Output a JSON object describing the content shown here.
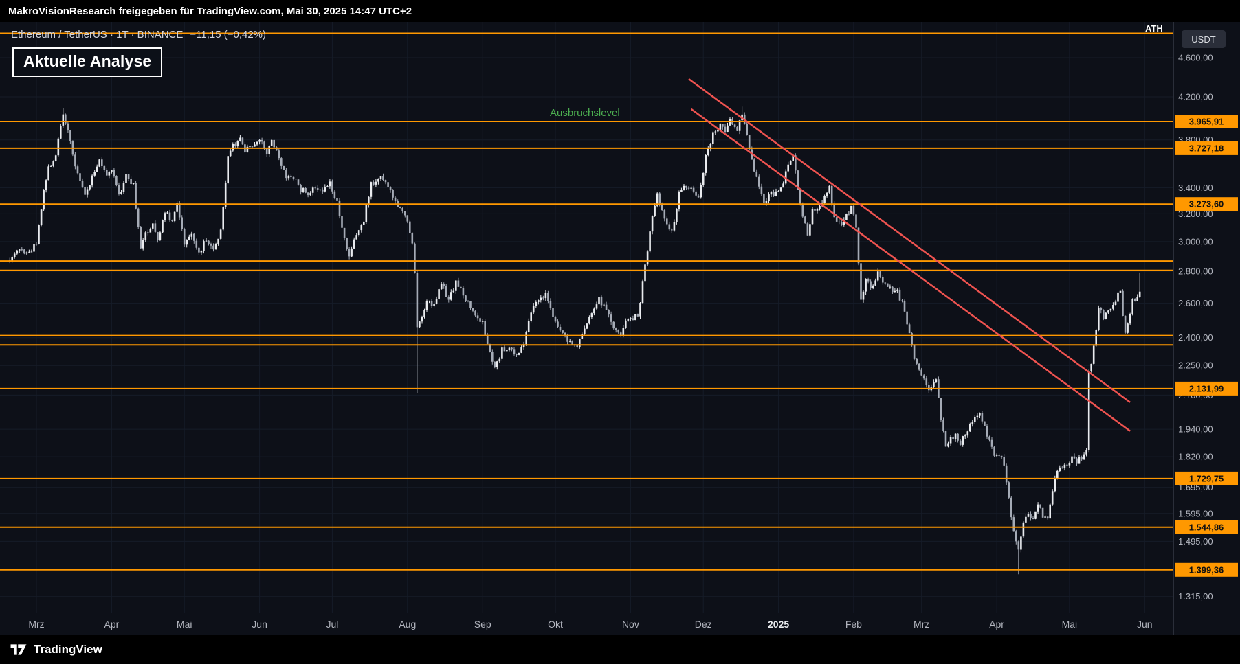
{
  "top_bar": {
    "text": "MakroVisionResearch freigegeben für TradingView.com, Mai 30, 2025 14:47 UTC+2"
  },
  "legend": {
    "symbol_text": "Ethereum / TetherUS · 1T · BINANCE",
    "change": "−11,15 (−0,42%)"
  },
  "analysis_box": {
    "label": "Aktuelle Analyse"
  },
  "annotations": {
    "breakout_label": "Ausbruchslevel",
    "breakout_color": "#4caf50",
    "ath_label": "ATH"
  },
  "currency_button": {
    "label": "USDT"
  },
  "footer": {
    "brand": "TradingView"
  },
  "axis": {
    "price_ticks": [
      {
        "label": "4.600,00",
        "value": 4600
      },
      {
        "label": "4.200,00",
        "value": 4200
      },
      {
        "label": "3.800,00",
        "value": 3800
      },
      {
        "label": "3.400,00",
        "value": 3400
      },
      {
        "label": "3.200,00",
        "value": 3200
      },
      {
        "label": "3.000,00",
        "value": 3000
      },
      {
        "label": "2.800,00",
        "value": 2800
      },
      {
        "label": "2.600,00",
        "value": 2600
      },
      {
        "label": "2.400,00",
        "value": 2400
      },
      {
        "label": "2.250,00",
        "value": 2250
      },
      {
        "label": "2.100,00",
        "value": 2100
      },
      {
        "label": "1.940,00",
        "value": 1940
      },
      {
        "label": "1.820,00",
        "value": 1820
      },
      {
        "label": "1.695,00",
        "value": 1695
      },
      {
        "label": "1.595,00",
        "value": 1595
      },
      {
        "label": "1.495,00",
        "value": 1495
      },
      {
        "label": "1.315,00",
        "value": 1315
      }
    ],
    "level_badges": [
      {
        "label": "3.965,91",
        "value": 3965.91
      },
      {
        "label": "3.727,18",
        "value": 3727.18
      },
      {
        "label": "3.273,60",
        "value": 3273.6
      },
      {
        "label": "2.131,99",
        "value": 2131.99
      },
      {
        "label": "1.729,75",
        "value": 1729.75
      },
      {
        "label": "1.544,86",
        "value": 1544.86
      },
      {
        "label": "1.399,36",
        "value": 1399.36
      }
    ],
    "time_ticks": [
      {
        "label": "Mrz",
        "day": 0
      },
      {
        "label": "Apr",
        "day": 31
      },
      {
        "label": "Mai",
        "day": 61
      },
      {
        "label": "Jun",
        "day": 92
      },
      {
        "label": "Jul",
        "day": 122
      },
      {
        "label": "Aug",
        "day": 153
      },
      {
        "label": "Sep",
        "day": 184
      },
      {
        "label": "Okt",
        "day": 214
      },
      {
        "label": "Nov",
        "day": 245
      },
      {
        "label": "Dez",
        "day": 275
      },
      {
        "label": "2025",
        "day": 306,
        "emphasis": true
      },
      {
        "label": "Feb",
        "day": 337
      },
      {
        "label": "Mrz",
        "day": 365
      },
      {
        "label": "Apr",
        "day": 396
      },
      {
        "label": "Mai",
        "day": 426
      },
      {
        "label": "Jun",
        "day": 457
      }
    ]
  },
  "chart_data": {
    "type": "candlestick",
    "title": "Ethereum / TetherUS · 1T · BINANCE",
    "interval": "1D",
    "quote_currency": "USDT",
    "price_scale": "log",
    "price_range_visible": [
      1250,
      4900
    ],
    "x_domain_days": [
      -11,
      457
    ],
    "x_domain_dates": [
      "2024-02-19",
      "2025-06-01"
    ],
    "last_price": 2655,
    "last_change": -11.15,
    "last_change_pct": -0.42,
    "anchors": [
      [
        -11,
        2880
      ],
      [
        -7,
        2950
      ],
      [
        -3,
        2920
      ],
      [
        0,
        3000
      ],
      [
        3,
        3380
      ],
      [
        5,
        3550
      ],
      [
        8,
        3680
      ],
      [
        11,
        4050
      ],
      [
        13,
        3880
      ],
      [
        16,
        3560
      ],
      [
        18,
        3460
      ],
      [
        20,
        3340
      ],
      [
        23,
        3490
      ],
      [
        26,
        3620
      ],
      [
        29,
        3500
      ],
      [
        31,
        3560
      ],
      [
        34,
        3330
      ],
      [
        37,
        3510
      ],
      [
        40,
        3420
      ],
      [
        43,
        2940
      ],
      [
        45,
        3060
      ],
      [
        48,
        3130
      ],
      [
        50,
        3010
      ],
      [
        53,
        3220
      ],
      [
        56,
        3130
      ],
      [
        58,
        3280
      ],
      [
        61,
        2990
      ],
      [
        64,
        3050
      ],
      [
        67,
        2930
      ],
      [
        70,
        3010
      ],
      [
        73,
        2950
      ],
      [
        76,
        3080
      ],
      [
        79,
        3660
      ],
      [
        81,
        3740
      ],
      [
        84,
        3820
      ],
      [
        86,
        3690
      ],
      [
        89,
        3760
      ],
      [
        92,
        3800
      ],
      [
        95,
        3690
      ],
      [
        97,
        3810
      ],
      [
        100,
        3620
      ],
      [
        103,
        3500
      ],
      [
        106,
        3480
      ],
      [
        109,
        3390
      ],
      [
        112,
        3350
      ],
      [
        115,
        3420
      ],
      [
        118,
        3380
      ],
      [
        121,
        3440
      ],
      [
        124,
        3290
      ],
      [
        127,
        3010
      ],
      [
        129,
        2880
      ],
      [
        132,
        3060
      ],
      [
        135,
        3160
      ],
      [
        138,
        3440
      ],
      [
        141,
        3460
      ],
      [
        143,
        3480
      ],
      [
        146,
        3380
      ],
      [
        149,
        3240
      ],
      [
        152,
        3200
      ],
      [
        155,
        2980
      ],
      [
        156,
        2780
      ],
      [
        157,
        2450
      ],
      [
        159,
        2520
      ],
      [
        161,
        2610
      ],
      [
        164,
        2580
      ],
      [
        167,
        2720
      ],
      [
        170,
        2620
      ],
      [
        173,
        2730
      ],
      [
        176,
        2650
      ],
      [
        179,
        2580
      ],
      [
        182,
        2520
      ],
      [
        184,
        2480
      ],
      [
        187,
        2310
      ],
      [
        189,
        2230
      ],
      [
        192,
        2330
      ],
      [
        195,
        2350
      ],
      [
        198,
        2300
      ],
      [
        201,
        2380
      ],
      [
        204,
        2560
      ],
      [
        207,
        2610
      ],
      [
        210,
        2650
      ],
      [
        212,
        2580
      ],
      [
        214,
        2480
      ],
      [
        217,
        2420
      ],
      [
        220,
        2380
      ],
      [
        223,
        2350
      ],
      [
        226,
        2450
      ],
      [
        229,
        2530
      ],
      [
        232,
        2620
      ],
      [
        235,
        2560
      ],
      [
        238,
        2440
      ],
      [
        241,
        2420
      ],
      [
        244,
        2510
      ],
      [
        248,
        2520
      ],
      [
        250,
        2720
      ],
      [
        252,
        2950
      ],
      [
        254,
        3180
      ],
      [
        256,
        3360
      ],
      [
        258,
        3220
      ],
      [
        260,
        3120
      ],
      [
        262,
        3060
      ],
      [
        265,
        3350
      ],
      [
        268,
        3420
      ],
      [
        270,
        3400
      ],
      [
        273,
        3320
      ],
      [
        276,
        3650
      ],
      [
        279,
        3850
      ],
      [
        282,
        3920
      ],
      [
        284,
        3880
      ],
      [
        286,
        3990
      ],
      [
        289,
        3900
      ],
      [
        291,
        4010
      ],
      [
        293,
        3850
      ],
      [
        295,
        3620
      ],
      [
        298,
        3420
      ],
      [
        300,
        3280
      ],
      [
        302,
        3360
      ],
      [
        305,
        3350
      ],
      [
        308,
        3440
      ],
      [
        310,
        3610
      ],
      [
        312,
        3680
      ],
      [
        315,
        3280
      ],
      [
        318,
        3050
      ],
      [
        320,
        3220
      ],
      [
        322,
        3240
      ],
      [
        325,
        3320
      ],
      [
        327,
        3420
      ],
      [
        329,
        3180
      ],
      [
        331,
        3120
      ],
      [
        334,
        3180
      ],
      [
        336,
        3250
      ],
      [
        338,
        3120
      ],
      [
        339,
        2870
      ],
      [
        340,
        2630
      ],
      [
        342,
        2740
      ],
      [
        344,
        2700
      ],
      [
        347,
        2780
      ],
      [
        350,
        2720
      ],
      [
        353,
        2680
      ],
      [
        355,
        2670
      ],
      [
        358,
        2560
      ],
      [
        360,
        2420
      ],
      [
        362,
        2280
      ],
      [
        364,
        2230
      ],
      [
        366,
        2170
      ],
      [
        368,
        2120
      ],
      [
        371,
        2170
      ],
      [
        373,
        1990
      ],
      [
        375,
        1870
      ],
      [
        377,
        1900
      ],
      [
        379,
        1910
      ],
      [
        381,
        1880
      ],
      [
        384,
        1930
      ],
      [
        386,
        1970
      ],
      [
        389,
        2010
      ],
      [
        391,
        1950
      ],
      [
        393,
        1880
      ],
      [
        395,
        1820
      ],
      [
        397,
        1830
      ],
      [
        399,
        1790
      ],
      [
        402,
        1580
      ],
      [
        404,
        1500
      ],
      [
        405,
        1475
      ],
      [
        407,
        1560
      ],
      [
        409,
        1600
      ],
      [
        411,
        1570
      ],
      [
        413,
        1630
      ],
      [
        415,
        1590
      ],
      [
        417,
        1580
      ],
      [
        419,
        1690
      ],
      [
        421,
        1760
      ],
      [
        423,
        1780
      ],
      [
        425,
        1790
      ],
      [
        427,
        1810
      ],
      [
        429,
        1800
      ],
      [
        431,
        1820
      ],
      [
        433,
        1840
      ],
      [
        434,
        2210
      ],
      [
        436,
        2340
      ],
      [
        438,
        2560
      ],
      [
        440,
        2520
      ],
      [
        442,
        2560
      ],
      [
        444,
        2600
      ],
      [
        446,
        2650
      ],
      [
        447,
        2660
      ],
      [
        449,
        2430
      ],
      [
        451,
        2550
      ],
      [
        452,
        2620
      ],
      [
        454,
        2640
      ],
      [
        455,
        2655
      ]
    ],
    "events": [
      {
        "day": 11,
        "high": 4093
      },
      {
        "day": 157,
        "low": 2111
      },
      {
        "day": 291,
        "high": 4106
      },
      {
        "day": 340,
        "low": 2125
      },
      {
        "day": 405,
        "low": 1385
      },
      {
        "day": 455,
        "high": 2792
      }
    ],
    "levels": [
      {
        "price": 4868.0,
        "labeled": false,
        "note": "ATH"
      },
      {
        "price": 3965.91,
        "labeled": true
      },
      {
        "price": 3727.18,
        "labeled": true
      },
      {
        "price": 3273.6,
        "labeled": true
      },
      {
        "price": 2868,
        "labeled": false
      },
      {
        "price": 2806,
        "labeled": false
      },
      {
        "price": 2412,
        "labeled": false
      },
      {
        "price": 2360,
        "labeled": false
      },
      {
        "price": 2131.99,
        "labeled": true
      },
      {
        "price": 1729.75,
        "labeled": true
      },
      {
        "price": 1544.86,
        "labeled": true
      },
      {
        "price": 1399.36,
        "labeled": true
      }
    ],
    "trendlines": [
      {
        "d1": 269,
        "p1": 4378,
        "d2": 451,
        "p2": 2065
      },
      {
        "d1": 270,
        "p1": 4082,
        "d2": 451,
        "p2": 1932
      }
    ],
    "colors": {
      "background": "#0d1018",
      "grid": "#161c28",
      "candle_up": "#e9ebef",
      "candle_down": "#a5abb6",
      "level": "#ff9800",
      "trendline": "#ef5350",
      "axis_text": "#b2b5be",
      "badge_text": "#111111",
      "separator": "#2a2e39"
    }
  }
}
